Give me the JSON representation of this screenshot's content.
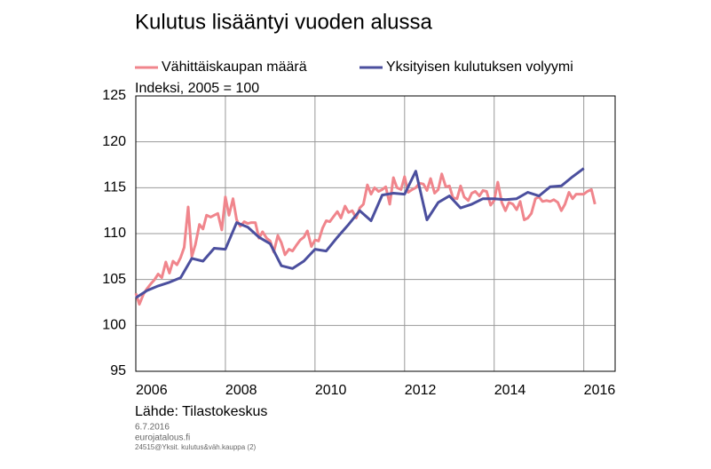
{
  "chart_data": {
    "type": "line",
    "title": "Kulutus lisääntyi vuoden alussa",
    "y_label": "Indeksi, 2005 = 100",
    "source": "Lähde: Tilastokeskus",
    "date": "6.7.2016",
    "site": "eurojatalous.fi",
    "code": "24515@Yksit. kulutus&väh.kauppa (2)",
    "xlim": [
      2006,
      2016.7
    ],
    "xticks": [
      2006,
      2008,
      2010,
      2012,
      2014,
      2016
    ],
    "ylim": [
      95,
      125
    ],
    "yticks": [
      95,
      100,
      105,
      110,
      115,
      120,
      125
    ],
    "grid": true,
    "series": [
      {
        "name": "Vähittäiskaupan määrä",
        "color": "#f0858c",
        "x": [
          2006,
          2006.08,
          2006.17,
          2006.25,
          2006.33,
          2006.42,
          2006.5,
          2006.58,
          2006.67,
          2006.75,
          2006.83,
          2006.92,
          2007,
          2007.08,
          2007.17,
          2007.25,
          2007.33,
          2007.42,
          2007.5,
          2007.58,
          2007.67,
          2007.75,
          2007.83,
          2007.92,
          2008,
          2008.08,
          2008.17,
          2008.25,
          2008.33,
          2008.42,
          2008.5,
          2008.58,
          2008.67,
          2008.75,
          2008.83,
          2008.92,
          2009,
          2009.08,
          2009.17,
          2009.25,
          2009.33,
          2009.42,
          2009.5,
          2009.58,
          2009.67,
          2009.75,
          2009.83,
          2009.92,
          2010,
          2010.08,
          2010.17,
          2010.25,
          2010.33,
          2010.42,
          2010.5,
          2010.58,
          2010.67,
          2010.75,
          2010.83,
          2010.92,
          2011,
          2011.08,
          2011.17,
          2011.25,
          2011.33,
          2011.42,
          2011.5,
          2011.58,
          2011.67,
          2011.75,
          2011.83,
          2011.92,
          2012,
          2012.08,
          2012.17,
          2012.25,
          2012.33,
          2012.42,
          2012.5,
          2012.58,
          2012.67,
          2012.75,
          2012.83,
          2012.92,
          2013,
          2013.08,
          2013.17,
          2013.25,
          2013.33,
          2013.42,
          2013.5,
          2013.58,
          2013.67,
          2013.75,
          2013.83,
          2013.92,
          2014,
          2014.08,
          2014.17,
          2014.25,
          2014.33,
          2014.42,
          2014.5,
          2014.58,
          2014.67,
          2014.75,
          2014.83,
          2014.92,
          2015,
          2015.08,
          2015.17,
          2015.25,
          2015.33,
          2015.42,
          2015.5,
          2015.58,
          2015.67,
          2015.75,
          2015.83,
          2015.92,
          2016,
          2016.08,
          2016.17,
          2016.25
        ],
        "values": [
          103.5,
          102.3,
          103.4,
          104.0,
          104.5,
          105.0,
          105.6,
          105.2,
          106.9,
          105.7,
          107.0,
          106.6,
          107.4,
          108.5,
          112.9,
          107.5,
          108.8,
          111.0,
          110.5,
          112.0,
          111.8,
          112.0,
          112.2,
          110.4,
          114.0,
          112.0,
          113.8,
          111.5,
          110.8,
          111.3,
          111.1,
          111.2,
          111.2,
          109.5,
          110.2,
          109.5,
          109.2,
          108.0,
          109.8,
          109.0,
          107.7,
          108.3,
          108.1,
          108.7,
          109.3,
          109.6,
          110.3,
          108.6,
          109.3,
          109.2,
          110.6,
          111.4,
          111.3,
          111.9,
          112.4,
          111.7,
          113.0,
          112.3,
          112.5,
          111.7,
          112.8,
          113.2,
          115.3,
          114.3,
          115.0,
          114.6,
          114.8,
          115.1,
          113.2,
          116.1,
          115.0,
          114.8,
          116.2,
          114.5,
          114.8,
          115.0,
          115.5,
          115.4,
          114.7,
          116.0,
          114.4,
          114.8,
          116.5,
          115.1,
          115.2,
          113.9,
          113.8,
          115.2,
          114.0,
          113.6,
          114.4,
          114.6,
          114.1,
          114.7,
          114.6,
          113.1,
          113.6,
          115.6,
          113.4,
          112.5,
          113.4,
          113.2,
          112.6,
          113.5,
          111.5,
          111.7,
          112.2,
          113.8,
          114.0,
          113.5,
          113.6,
          113.5,
          113.7,
          113.4,
          112.5,
          113.2,
          114.5,
          113.8,
          114.3,
          114.3,
          114.3,
          114.6,
          114.8,
          113.2
        ]
      },
      {
        "name": "Yksityisen kulutuksen volyymi",
        "color": "#4b4f9e",
        "x": [
          2006,
          2006.25,
          2006.5,
          2006.75,
          2007,
          2007.25,
          2007.5,
          2007.75,
          2008,
          2008.25,
          2008.5,
          2008.75,
          2009,
          2009.25,
          2009.5,
          2009.75,
          2010,
          2010.25,
          2010.5,
          2010.75,
          2011,
          2011.25,
          2011.5,
          2011.75,
          2012,
          2012.25,
          2012.5,
          2012.75,
          2013,
          2013.25,
          2013.5,
          2013.75,
          2014,
          2014.25,
          2014.5,
          2014.75,
          2015,
          2015.25,
          2015.5,
          2015.75,
          2016
        ],
        "values": [
          103.0,
          103.8,
          104.3,
          104.7,
          105.2,
          107.3,
          107.0,
          108.4,
          108.3,
          111.2,
          110.7,
          109.6,
          108.9,
          106.5,
          106.2,
          107.0,
          108.3,
          108.1,
          109.6,
          111.0,
          112.5,
          111.4,
          114.2,
          114.4,
          114.3,
          116.8,
          111.5,
          113.4,
          114.1,
          112.8,
          113.2,
          113.8,
          113.8,
          113.7,
          113.8,
          114.5,
          114.1,
          115.1,
          115.2,
          116.2,
          117.1
        ]
      }
    ]
  }
}
